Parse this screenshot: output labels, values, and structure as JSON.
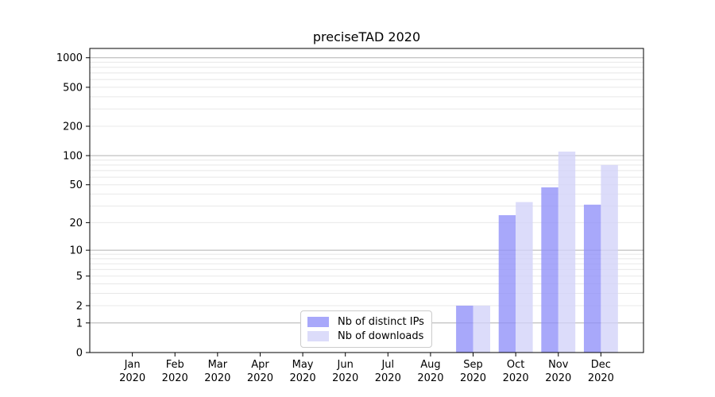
{
  "chart_data": {
    "type": "bar",
    "title": "preciseTAD 2020",
    "categories": [
      "Jan",
      "Feb",
      "Mar",
      "Apr",
      "May",
      "Jun",
      "Jul",
      "Aug",
      "Sep",
      "Oct",
      "Nov",
      "Dec"
    ],
    "x_year_label": "2020",
    "series": [
      {
        "name": "Nb of distinct IPs",
        "color": "#a8a8fa",
        "values": [
          0,
          0,
          0,
          0,
          0,
          0,
          0,
          0,
          2,
          24,
          47,
          31
        ]
      },
      {
        "name": "Nb of downloads",
        "color": "#dcdcfa",
        "values": [
          0,
          0,
          0,
          0,
          0,
          0,
          0,
          0,
          2,
          33,
          110,
          80
        ]
      }
    ],
    "y_scale": "log1p",
    "ylim": [
      0,
      1244
    ],
    "y_ticks": [
      0,
      1,
      2,
      5,
      10,
      20,
      50,
      100,
      200,
      500,
      1000
    ],
    "grid": {
      "major_lines": [
        1,
        10,
        100,
        1000
      ],
      "minor_lines": [
        2,
        3,
        4,
        5,
        6,
        7,
        8,
        9,
        20,
        30,
        40,
        50,
        60,
        70,
        80,
        90,
        200,
        300,
        400,
        500,
        600,
        700,
        800,
        900
      ],
      "major_color": "#b0b0b0",
      "minor_color": "#e8e8e8"
    },
    "legend": {
      "position": "bottom-center-inside",
      "entries": [
        "Nb of distinct IPs",
        "Nb of downloads"
      ]
    },
    "axis_color": "#000000",
    "xlabel": "",
    "ylabel": ""
  }
}
